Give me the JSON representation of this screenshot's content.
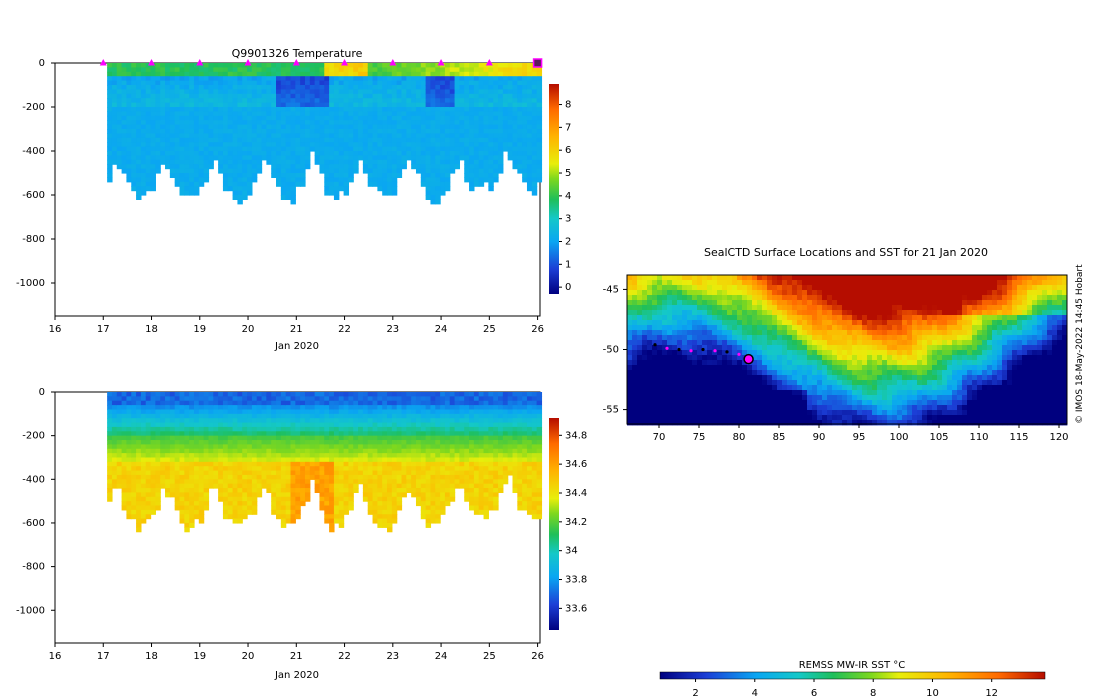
{
  "chart_data": [
    {
      "id": "temperature-section",
      "type": "heatmap",
      "title": "Q9901326  Temperature",
      "xlabel": "Jan 2020",
      "ylabel": "",
      "xlim": [
        16,
        26.05
      ],
      "ylim": [
        -1150,
        0
      ],
      "xticks": [
        16,
        17,
        18,
        19,
        20,
        21,
        22,
        23,
        24,
        25,
        26
      ],
      "yticks": [
        0,
        -200,
        -400,
        -600,
        -800,
        -1000
      ],
      "colorbar": {
        "ticks": [
          0,
          1,
          2,
          3,
          4,
          5,
          6,
          7,
          8
        ],
        "range": [
          -0.3,
          8.9
        ]
      },
      "profile_markers_x": [
        17,
        18,
        19,
        20,
        21,
        22,
        23,
        24,
        25,
        26
      ],
      "latest_marker_x": 26
    },
    {
      "id": "salinity-section",
      "type": "heatmap",
      "title": "",
      "xlabel": "Jan 2020",
      "ylabel": "",
      "xlim": [
        16,
        26.05
      ],
      "ylim": [
        -1150,
        0
      ],
      "xticks": [
        16,
        17,
        18,
        19,
        20,
        21,
        22,
        23,
        24,
        25,
        26
      ],
      "yticks": [
        0,
        -200,
        -400,
        -600,
        -800,
        -1000
      ],
      "colorbar": {
        "ticks": [
          33.6,
          33.8,
          34,
          34.2,
          34.4,
          34.6,
          34.8
        ],
        "tick_labels": [
          "33.6",
          "33.8",
          "34",
          "34.2",
          "34.4",
          "34.6",
          "34.8"
        ],
        "range": [
          33.45,
          34.92
        ]
      }
    },
    {
      "id": "sst-map",
      "type": "heatmap",
      "title": "SealCTD Surface Locations and SST for 21 Jan 2020",
      "xlabel": "",
      "ylabel": "",
      "xlim": [
        66,
        121
      ],
      "ylim": [
        -56.2,
        -43.8
      ],
      "xticks": [
        70,
        75,
        80,
        85,
        90,
        95,
        100,
        105,
        110,
        115,
        120
      ],
      "yticks": [
        -45,
        -50,
        -55
      ],
      "track_lon": [
        69.5,
        71,
        72.5,
        74,
        75.5,
        77,
        78.5,
        80,
        81.2
      ],
      "track_lat": [
        -49.6,
        -49.9,
        -50.0,
        -50.1,
        -50.0,
        -50.1,
        -50.2,
        -50.4,
        -50.8
      ],
      "current_position": {
        "lon": 81.2,
        "lat": -50.8
      }
    }
  ],
  "sst_colorbar": {
    "label": "REMSS MW-IR SST °C",
    "ticks": [
      2,
      4,
      6,
      8,
      10,
      12
    ],
    "range": [
      0.8,
      13.8
    ]
  },
  "credit": "© IMOS 18-May-2022 14:45 Hobart"
}
